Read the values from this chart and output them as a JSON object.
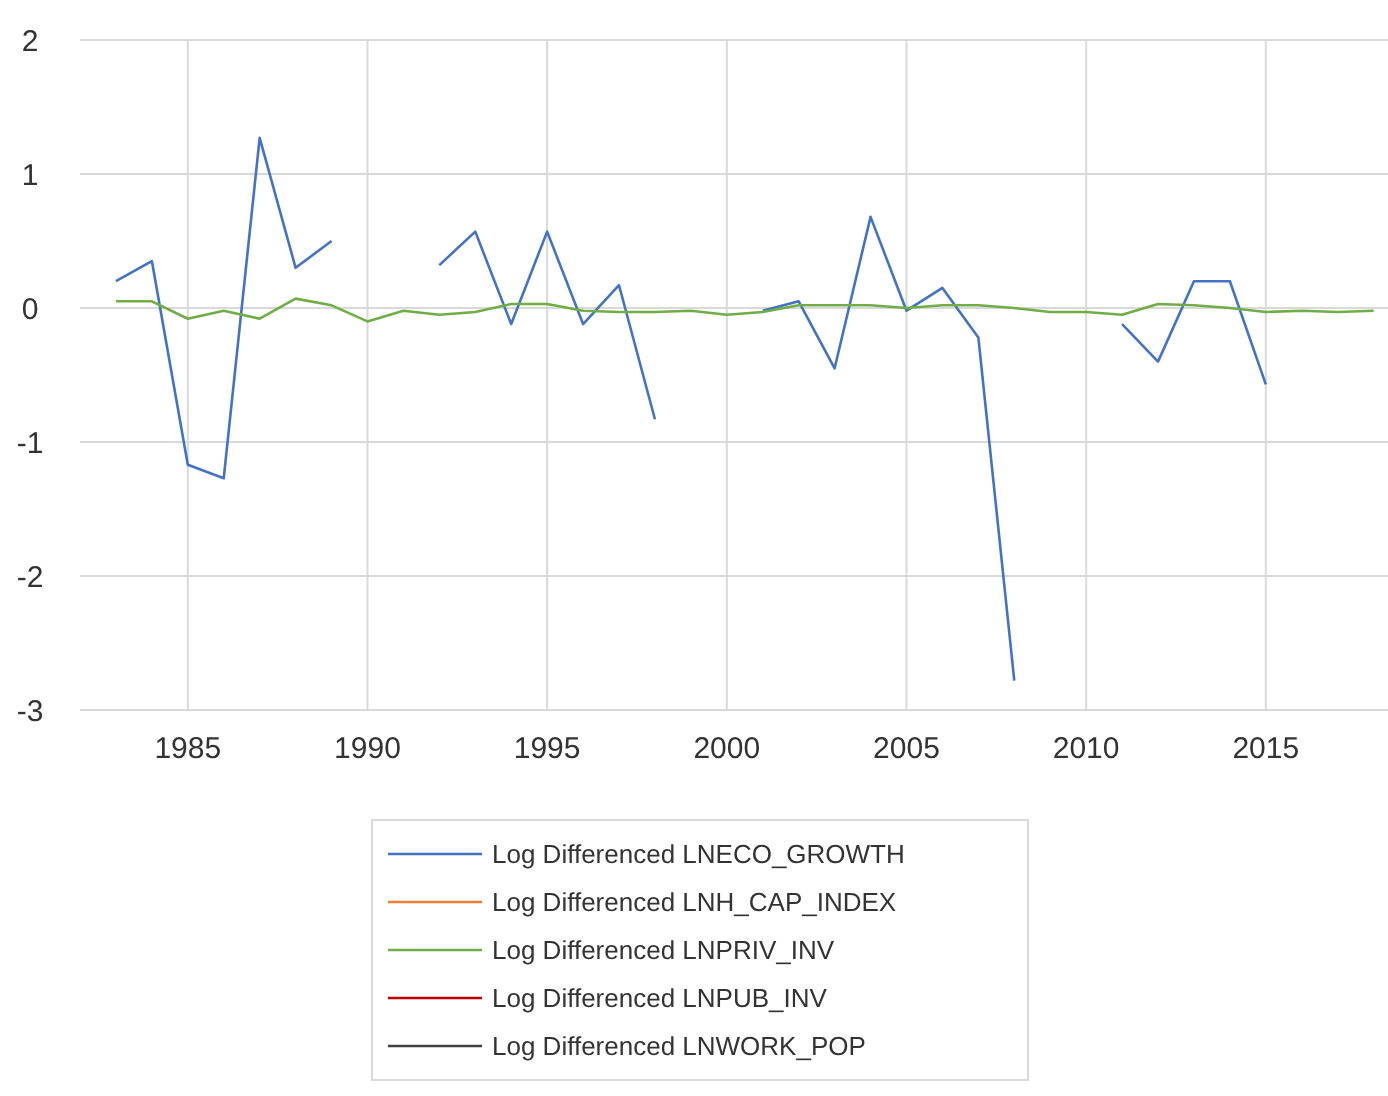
{
  "chart_data": {
    "type": "line",
    "x": [
      1983,
      1984,
      1985,
      1986,
      1987,
      1988,
      1989,
      1990,
      1991,
      1992,
      1993,
      1994,
      1995,
      1996,
      1997,
      1998,
      1999,
      2000,
      2001,
      2002,
      2003,
      2004,
      2005,
      2006,
      2007,
      2008,
      2009,
      2010,
      2011,
      2012,
      2013,
      2014,
      2015,
      2016,
      2017,
      2018
    ],
    "series": [
      {
        "name": "Log Differenced LNECO_GROWTH",
        "color": "#4472c4",
        "values": [
          0.2,
          0.35,
          -1.17,
          -1.27,
          1.27,
          0.3,
          0.5,
          null,
          null,
          0.32,
          0.57,
          -0.12,
          0.57,
          -0.12,
          0.17,
          -0.83,
          null,
          null,
          -0.02,
          0.05,
          -0.45,
          0.68,
          -0.02,
          0.15,
          -0.22,
          -2.78,
          null,
          null,
          -0.12,
          -0.4,
          0.2,
          0.2,
          -0.57,
          null,
          null,
          null
        ]
      },
      {
        "name": "Log Differenced LNH_CAP_INDEX",
        "color": "#ed7d31",
        "values": [
          null,
          null,
          null,
          null,
          null,
          null,
          null,
          null,
          null,
          null,
          null,
          null,
          null,
          null,
          null,
          null,
          null,
          null,
          null,
          null,
          null,
          null,
          null,
          null,
          null,
          null,
          null,
          null,
          null,
          null,
          null,
          null,
          null,
          null,
          null,
          null
        ]
      },
      {
        "name": "Log Differenced LNPRIV_INV",
        "color": "#70ad47",
        "values": [
          0.05,
          0.05,
          -0.08,
          -0.02,
          -0.08,
          0.07,
          0.02,
          -0.1,
          -0.02,
          -0.05,
          -0.03,
          0.03,
          0.03,
          -0.02,
          -0.03,
          -0.03,
          -0.02,
          -0.05,
          -0.03,
          0.02,
          0.02,
          0.02,
          0,
          0.02,
          0.02,
          0,
          -0.03,
          -0.03,
          -0.05,
          0.03,
          0.02,
          0,
          -0.03,
          -0.02,
          -0.03,
          -0.02
        ]
      },
      {
        "name": "Log Differenced LNPUB_INV",
        "color": "#c00000",
        "values": [
          null,
          null,
          null,
          null,
          null,
          null,
          null,
          null,
          null,
          null,
          null,
          null,
          null,
          null,
          null,
          null,
          null,
          null,
          null,
          null,
          null,
          null,
          null,
          null,
          null,
          null,
          null,
          null,
          null,
          null,
          null,
          null,
          null,
          null,
          null,
          null
        ]
      },
      {
        "name": "Log Differenced LNWORK_POP",
        "color": "#404040",
        "values": [
          null,
          null,
          null,
          null,
          null,
          null,
          null,
          null,
          null,
          null,
          null,
          null,
          null,
          null,
          null,
          null,
          null,
          null,
          null,
          null,
          null,
          null,
          null,
          null,
          null,
          null,
          null,
          null,
          null,
          null,
          null,
          null,
          null,
          null,
          null,
          null
        ]
      }
    ],
    "xlim": [
      1982,
      2018.4
    ],
    "xticks": [
      1985,
      1990,
      1995,
      2000,
      2005,
      2010,
      2015
    ],
    "ylim": [
      -3,
      2
    ],
    "yticks": [
      -3,
      -2,
      -1,
      0,
      1,
      2
    ],
    "grid": true,
    "legend": "bottom"
  }
}
